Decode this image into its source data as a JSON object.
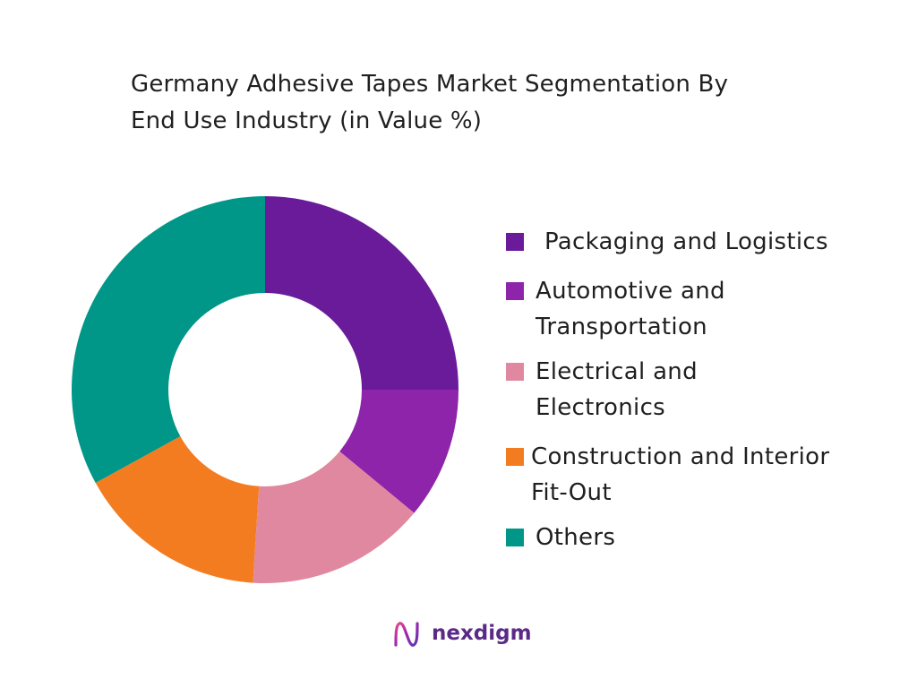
{
  "chart_data": {
    "type": "pie",
    "title": "Germany Adhesive Tapes Market Segmentation By End Use Industry (in Value %)",
    "title_lines": [
      "Germany Adhesive Tapes Market Segmentation By",
      "End Use Industry (in Value %)"
    ],
    "donut": true,
    "legend_position": "right",
    "slices": [
      {
        "label": "Packaging and Logistics",
        "label_lines": [
          "Packaging and Logistics"
        ],
        "value": 25,
        "color": "#6a1b9a"
      },
      {
        "label": "Automotive and Transportation",
        "label_lines": [
          "Automotive and",
          "Transportation"
        ],
        "value": 11,
        "color": "#8e24aa"
      },
      {
        "label": "Electrical and Electronics",
        "label_lines": [
          "Electrical and",
          "Electronics"
        ],
        "value": 15,
        "color": "#e088a0"
      },
      {
        "label": "Construction and Interior Fit-Out",
        "label_lines": [
          "Construction and Interior",
          "Fit-Out"
        ],
        "value": 16,
        "color": "#f47c20"
      },
      {
        "label": "Others",
        "label_lines": [
          "Others"
        ],
        "value": 33,
        "color": "#009688"
      }
    ]
  },
  "brand": {
    "name": "nexdigm",
    "logo_icon": "nexdigm-logo-icon",
    "color": "#5b2a86"
  }
}
